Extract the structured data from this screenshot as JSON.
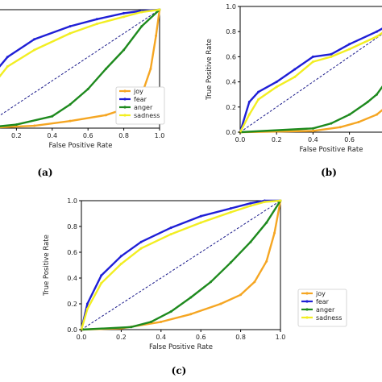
{
  "chart_data": [
    {
      "panel_label": "(a)",
      "type": "line",
      "xlabel": "False Positive Rate",
      "ylabel": "",
      "xlim": [
        0,
        1
      ],
      "ylim": [
        0,
        1
      ],
      "x_ticks": [
        "0.2",
        "0.4",
        "0.6",
        "0.8",
        "1.0"
      ],
      "y_ticks": [],
      "show_legend": true,
      "legend_position": "bottom-right",
      "legend": [
        "joy",
        "fear",
        "anger",
        "sadness"
      ],
      "series": [
        {
          "name": "joy",
          "color": "#f5a623",
          "x": [
            0,
            0.3,
            0.5,
            0.7,
            0.8,
            0.9,
            0.95,
            0.98,
            1.0
          ],
          "y": [
            0,
            0.02,
            0.06,
            0.11,
            0.16,
            0.28,
            0.5,
            0.78,
            1.0
          ]
        },
        {
          "name": "fear",
          "color": "#1f1fd6",
          "x": [
            0,
            0.05,
            0.15,
            0.3,
            0.5,
            0.65,
            0.8,
            0.9,
            1.0
          ],
          "y": [
            0,
            0.42,
            0.6,
            0.75,
            0.86,
            0.92,
            0.97,
            0.99,
            1.0
          ]
        },
        {
          "name": "anger",
          "color": "#1e8a1e",
          "x": [
            0,
            0.2,
            0.4,
            0.5,
            0.6,
            0.7,
            0.8,
            0.9,
            1.0
          ],
          "y": [
            0,
            0.03,
            0.1,
            0.2,
            0.33,
            0.5,
            0.66,
            0.86,
            1.0
          ]
        },
        {
          "name": "sadness",
          "color": "#f2ee22",
          "x": [
            0,
            0.05,
            0.15,
            0.3,
            0.5,
            0.65,
            0.8,
            0.9,
            1.0
          ],
          "y": [
            0,
            0.33,
            0.52,
            0.66,
            0.8,
            0.88,
            0.94,
            0.98,
            1.0
          ]
        }
      ]
    },
    {
      "panel_label": "(b)",
      "type": "line",
      "xlabel": "False Positive Rate",
      "ylabel": "True Positive Rate",
      "xlim": [
        0,
        1
      ],
      "ylim": [
        0,
        1
      ],
      "x_ticks": [
        "0.0",
        "0.2",
        "0.4",
        "0.6"
      ],
      "y_ticks": [
        "0.0",
        "0.2",
        "0.4",
        "0.6",
        "0.8",
        "1.0"
      ],
      "show_legend": false,
      "legend": [],
      "series": [
        {
          "name": "joy",
          "color": "#f5a623",
          "x": [
            0,
            0.4,
            0.55,
            0.65,
            0.75,
            0.85,
            1.0
          ],
          "y": [
            0,
            0.01,
            0.04,
            0.08,
            0.14,
            0.26,
            1.0
          ]
        },
        {
          "name": "fear",
          "color": "#1f1fd6",
          "x": [
            0,
            0.05,
            0.1,
            0.2,
            0.3,
            0.4,
            0.5,
            0.6,
            0.75,
            1.0
          ],
          "y": [
            0,
            0.24,
            0.32,
            0.4,
            0.5,
            0.6,
            0.62,
            0.7,
            0.8,
            1.0
          ]
        },
        {
          "name": "anger",
          "color": "#1e8a1e",
          "x": [
            0,
            0.4,
            0.5,
            0.6,
            0.7,
            0.75,
            0.85,
            1.0
          ],
          "y": [
            0,
            0.03,
            0.07,
            0.14,
            0.24,
            0.3,
            0.5,
            1.0
          ]
        },
        {
          "name": "sadness",
          "color": "#f2ee22",
          "x": [
            0,
            0.05,
            0.1,
            0.2,
            0.3,
            0.4,
            0.5,
            0.6,
            0.75,
            1.0
          ],
          "y": [
            0,
            0.14,
            0.26,
            0.36,
            0.44,
            0.56,
            0.6,
            0.66,
            0.76,
            1.0
          ]
        }
      ]
    },
    {
      "panel_label": "(c)",
      "type": "line",
      "xlabel": "False Positive Rate",
      "ylabel": "True Positive Rate",
      "xlim": [
        0,
        1
      ],
      "ylim": [
        0,
        1
      ],
      "x_ticks": [
        "0.0",
        "0.2",
        "0.4",
        "0.6",
        "0.8",
        "1.0"
      ],
      "y_ticks": [
        "0.0",
        "0.2",
        "0.4",
        "0.6",
        "0.8",
        "1.0"
      ],
      "show_legend": true,
      "legend_position": "bottom-right",
      "legend": [
        "joy",
        "fear",
        "anger",
        "sadness"
      ],
      "series": [
        {
          "name": "joy",
          "color": "#f5a623",
          "x": [
            0,
            0.2,
            0.4,
            0.55,
            0.7,
            0.8,
            0.87,
            0.93,
            0.97,
            1.0
          ],
          "y": [
            0,
            0.01,
            0.06,
            0.12,
            0.2,
            0.27,
            0.37,
            0.53,
            0.75,
            1.0
          ]
        },
        {
          "name": "fear",
          "color": "#1f1fd6",
          "x": [
            0,
            0.03,
            0.1,
            0.2,
            0.3,
            0.45,
            0.6,
            0.75,
            0.85,
            0.92,
            1.0
          ],
          "y": [
            0,
            0.2,
            0.42,
            0.57,
            0.68,
            0.79,
            0.88,
            0.94,
            0.98,
            1.0,
            1.0
          ]
        },
        {
          "name": "anger",
          "color": "#1e8a1e",
          "x": [
            0,
            0.25,
            0.35,
            0.45,
            0.55,
            0.65,
            0.75,
            0.85,
            0.93,
            1.0
          ],
          "y": [
            0,
            0.02,
            0.06,
            0.14,
            0.25,
            0.37,
            0.52,
            0.68,
            0.83,
            1.0
          ]
        },
        {
          "name": "sadness",
          "color": "#f2ee22",
          "x": [
            0,
            0.03,
            0.1,
            0.2,
            0.3,
            0.45,
            0.6,
            0.75,
            0.85,
            0.92,
            1.0
          ],
          "y": [
            0,
            0.16,
            0.36,
            0.51,
            0.63,
            0.74,
            0.83,
            0.91,
            0.96,
            0.99,
            1.0
          ]
        }
      ]
    }
  ]
}
